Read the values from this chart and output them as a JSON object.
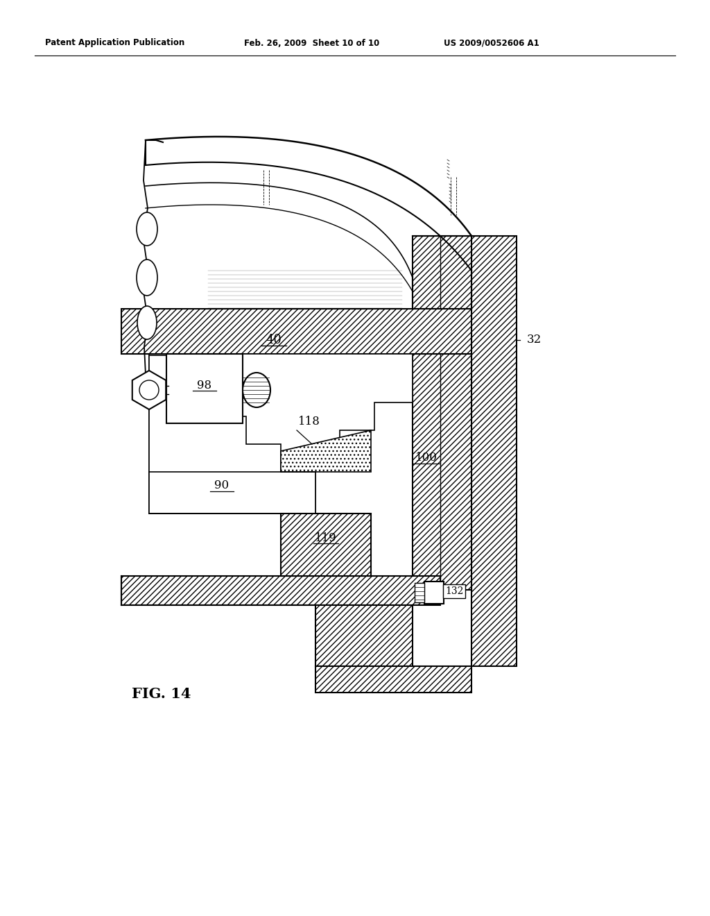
{
  "title_left": "Patent Application Publication",
  "title_mid": "Feb. 26, 2009  Sheet 10 of 10",
  "title_right": "US 2009/0052606 A1",
  "fig_label": "FIG. 14",
  "bg_color": "#ffffff",
  "line_color": "#000000"
}
